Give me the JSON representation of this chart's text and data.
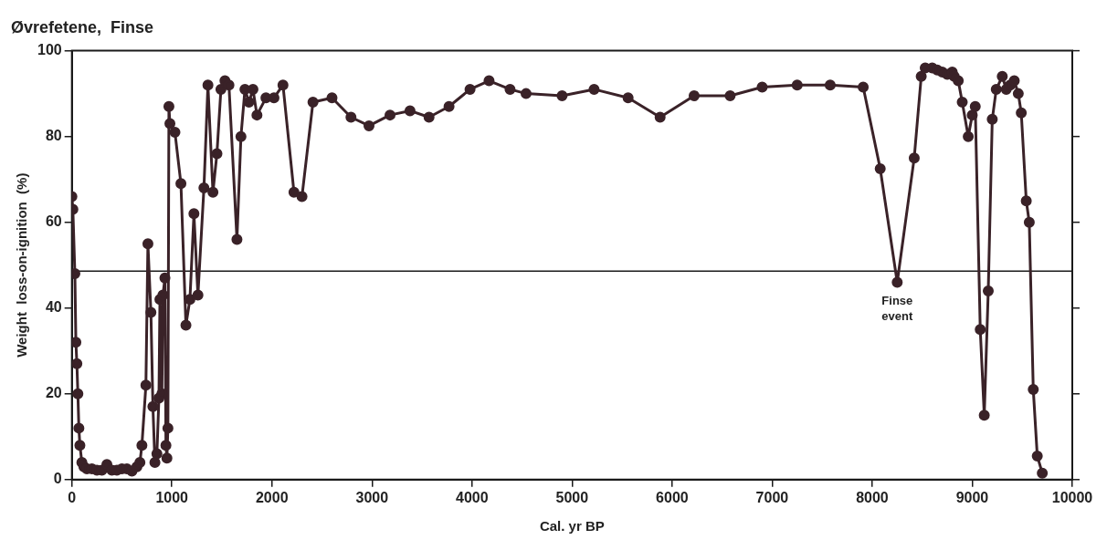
{
  "chart_data": {
    "type": "line",
    "title": "Øvrefetene,  Finse",
    "xlabel": "Cal. yr BP",
    "ylabel": "Weight  loss-on-ignition  (%)",
    "x": [
      0,
      10,
      30,
      40,
      50,
      60,
      70,
      80,
      100,
      120,
      150,
      200,
      250,
      300,
      350,
      400,
      450,
      500,
      550,
      600,
      650,
      680,
      700,
      740,
      760,
      790,
      810,
      830,
      850,
      870,
      880,
      900,
      910,
      930,
      940,
      950,
      960,
      970,
      980,
      1030,
      1090,
      1140,
      1180,
      1220,
      1260,
      1320,
      1360,
      1410,
      1450,
      1490,
      1530,
      1570,
      1650,
      1690,
      1730,
      1770,
      1810,
      1850,
      1940,
      2020,
      2110,
      2220,
      2300,
      2410,
      2600,
      2790,
      2970,
      3180,
      3380,
      3570,
      3770,
      3980,
      4170,
      4380,
      4540,
      4900,
      5220,
      5560,
      5880,
      6220,
      6580,
      6900,
      7250,
      7580,
      7910,
      8080,
      8250,
      8420,
      8490,
      8530,
      8600,
      8650,
      8700,
      8750,
      8800,
      8820,
      8860,
      8900,
      8960,
      9000,
      9030,
      9080,
      9120,
      9160,
      9200,
      9240,
      9300,
      9340,
      9380,
      9420,
      9460,
      9490,
      9540,
      9570,
      9610,
      9650,
      9700
    ],
    "values": [
      66,
      63,
      48,
      32,
      27,
      20,
      12,
      8,
      4,
      3,
      2.5,
      2.5,
      2.2,
      2.2,
      3.5,
      2.2,
      2.2,
      2.5,
      2.5,
      2,
      3,
      4,
      8,
      22,
      55,
      39,
      17,
      4,
      6,
      19,
      42,
      20,
      43,
      47,
      8,
      5,
      12,
      87,
      83,
      81,
      69,
      36,
      42,
      62,
      43,
      68,
      92,
      67,
      76,
      91,
      93,
      92,
      56,
      80,
      91,
      88,
      91,
      85,
      89,
      89,
      92,
      67,
      66,
      88,
      89,
      84.5,
      82.5,
      85,
      86,
      84.5,
      87,
      91,
      93,
      91,
      90,
      89.5,
      91,
      89,
      84.5,
      89.5,
      89.5,
      91.5,
      92,
      92,
      91.5,
      72.5,
      46,
      75,
      94,
      96,
      96,
      95.5,
      95,
      94.5,
      95,
      94,
      93,
      88,
      80,
      85,
      87,
      35,
      15,
      44,
      84,
      91,
      94,
      91,
      92,
      93,
      90,
      85.5,
      65,
      60,
      21,
      5.5,
      1.5
    ],
    "color": "#3a2228",
    "marker": "circle",
    "line_style": "solid",
    "grid": false,
    "legend": false,
    "xlim": [
      0,
      10000
    ],
    "xticks": [
      0,
      1000,
      2000,
      3000,
      4000,
      5000,
      6000,
      7000,
      8000,
      9000,
      10000
    ],
    "ylim": [
      0,
      100
    ],
    "yticks": [
      0,
      20,
      40,
      60,
      80,
      100
    ],
    "ref_lines": [
      {
        "axis": "y",
        "value": 48.6,
        "color": "#1a1a1a"
      }
    ],
    "annotations": [
      {
        "text": "Finse\nevent",
        "x": 8250,
        "y": 46
      }
    ]
  }
}
